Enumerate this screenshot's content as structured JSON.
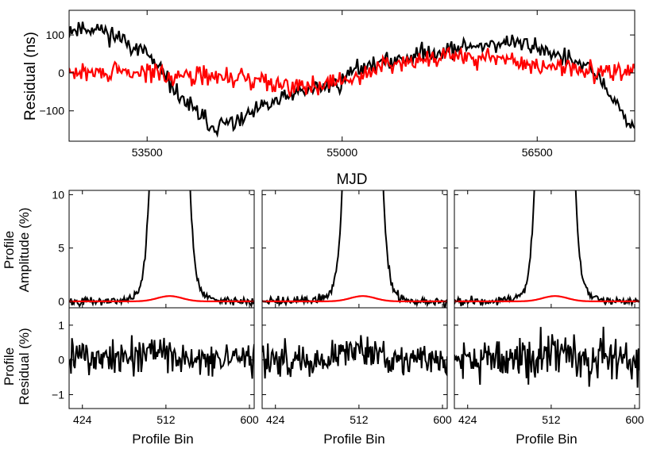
{
  "chart_data": [
    {
      "type": "line",
      "id": "residuals",
      "xlabel": "MJD",
      "ylabel": "Residual (ns)",
      "xlim": [
        52900,
        57250
      ],
      "ylim": [
        -180,
        165
      ],
      "xticks": [
        53500,
        55000,
        56500
      ],
      "xtick_labels": [
        "53500",
        "55000",
        "56500"
      ],
      "yticks": [
        -100,
        0,
        100
      ],
      "ytick_labels": [
        "−100",
        "0",
        "100"
      ],
      "series": [
        {
          "name": "black",
          "color": "#000000",
          "trend": {
            "x": [
              52900,
              53100,
              53300,
              53500,
              53700,
              53800,
              54000,
              54200,
              54400,
              54600,
              54800,
              55000,
              55100,
              55300,
              55600,
              55900,
              56100,
              56300,
              56500,
              56700,
              56850,
              57000,
              57100,
              57250
            ],
            "y": [
              115,
              120,
              90,
              50,
              -40,
              -80,
              -140,
              -130,
              -90,
              -60,
              -40,
              -25,
              15,
              25,
              50,
              65,
              75,
              80,
              70,
              40,
              20,
              -20,
              -80,
              -150
            ]
          },
          "noise_amplitude": 20
        },
        {
          "name": "red",
          "color": "#ff0000",
          "trend": {
            "x": [
              52900,
              53500,
              54000,
              54400,
              54700,
              55000,
              55400,
              55800,
              56200,
              56600,
              57000,
              57250
            ],
            "y": [
              0,
              0,
              -10,
              -20,
              -35,
              -25,
              30,
              45,
              35,
              15,
              5,
              0
            ]
          },
          "noise_amplitude": 22
        }
      ]
    },
    {
      "type": "line",
      "id": "profiles",
      "xlabel": "Profile Bin",
      "xlim": [
        410,
        605
      ],
      "xticks": [
        424,
        512,
        600
      ],
      "xtick_labels": [
        "424",
        "512",
        "600"
      ],
      "top_row": {
        "ylabel_lines": [
          "Profile",
          "Amplitude (%)"
        ],
        "ylim": [
          -0.6,
          10.4
        ],
        "yticks": [
          0,
          5,
          10
        ],
        "ytick_labels": [
          "0",
          "5",
          "10"
        ],
        "main_profile": {
          "center": 516,
          "width": 10,
          "peak": 100,
          "noise": 0.2,
          "color": "#000000"
        },
        "model_profile": {
          "center": 516,
          "width": 13,
          "peak": 0.5,
          "color": "#ff0000"
        }
      },
      "bottom_row": {
        "ylabel_lines": [
          "Profile",
          "Residual (%)"
        ],
        "ylim": [
          -1.4,
          1.5
        ],
        "yticks": [
          -1,
          0,
          1
        ],
        "ytick_labels": [
          "−1",
          "0",
          "1"
        ],
        "noise_amplitude": [
          0.3,
          0.28,
          0.38
        ]
      },
      "panel_count": 3
    }
  ]
}
